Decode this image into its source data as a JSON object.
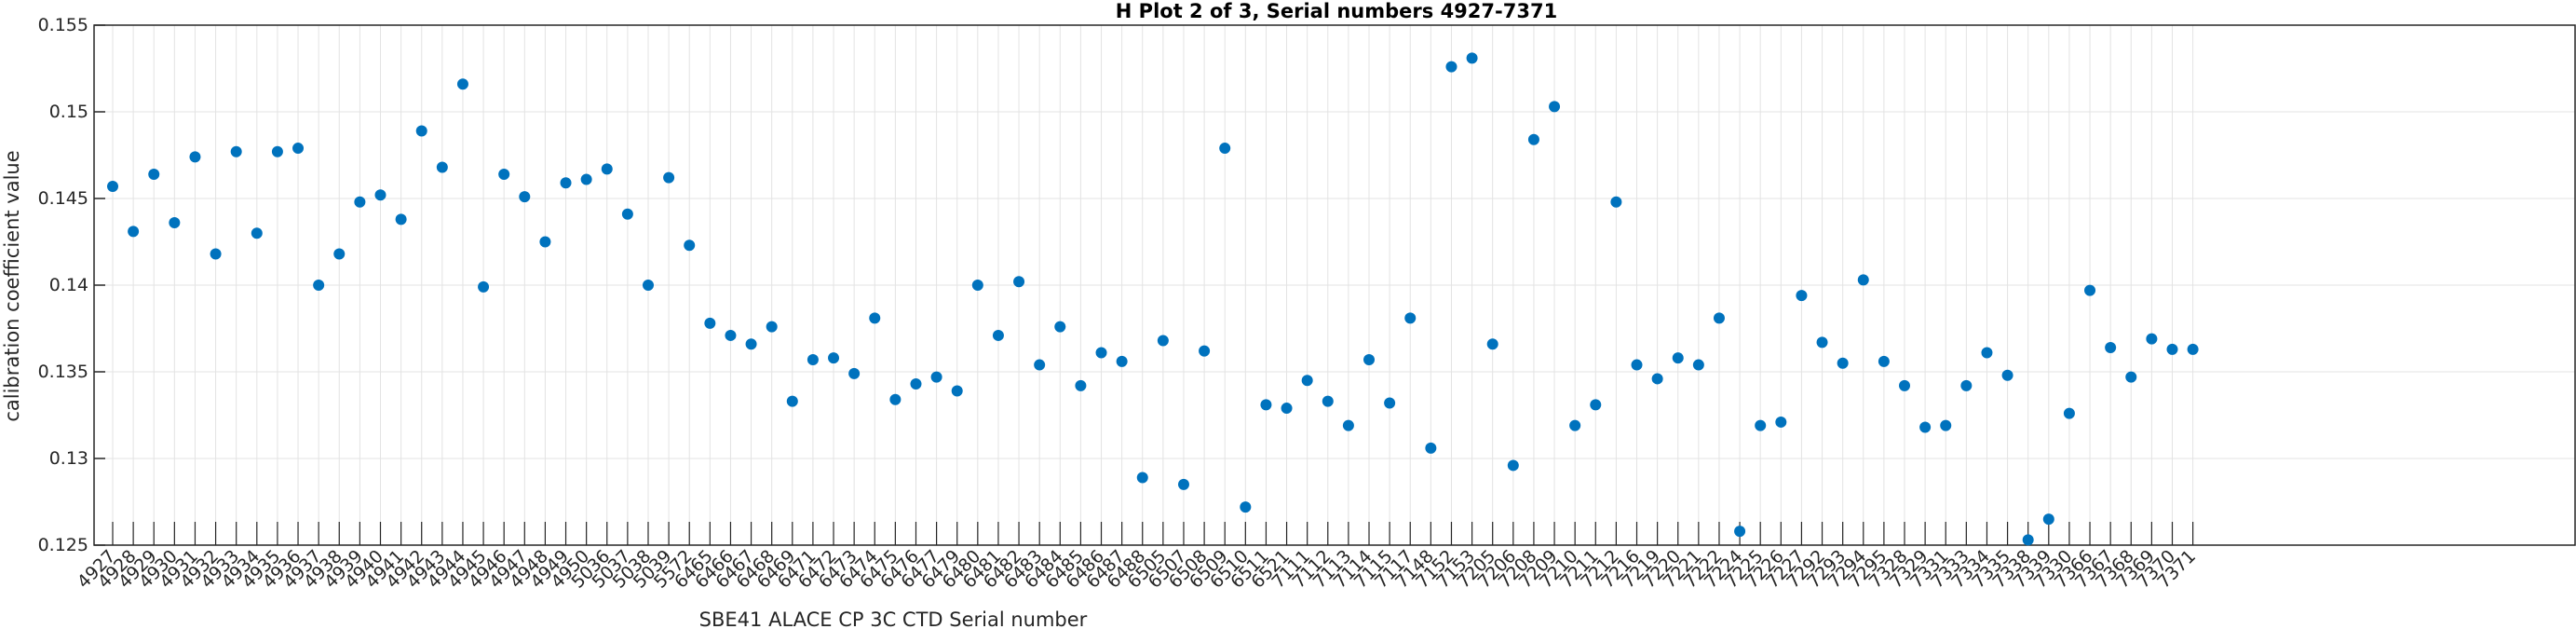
{
  "chart_data": {
    "type": "scatter",
    "title": "H Plot 2 of 3, Serial numbers 4927-7371",
    "xlabel": "SBE41 ALACE CP 3C CTD Serial number",
    "ylabel": "calibration coefficient value",
    "ylim": [
      0.125,
      0.155
    ],
    "yticks": [
      0.125,
      0.13,
      0.135,
      0.14,
      0.145,
      0.15,
      0.155
    ],
    "ytick_labels": [
      "0.125",
      "0.13",
      "0.135",
      "0.14",
      "0.145",
      "0.15",
      "0.155"
    ],
    "grid": true,
    "marker_color": "#0072BD",
    "categories": [
      "4927",
      "4928",
      "4929",
      "4930",
      "4931",
      "4932",
      "4933",
      "4934",
      "4935",
      "4936",
      "4937",
      "4938",
      "4939",
      "4940",
      "4941",
      "4942",
      "4943",
      "4944",
      "4945",
      "4946",
      "4947",
      "4948",
      "4949",
      "4950",
      "5036",
      "5037",
      "5038",
      "5039",
      "5572",
      "6465",
      "6466",
      "6467",
      "6468",
      "6469",
      "6471",
      "6472",
      "6473",
      "6474",
      "6475",
      "6476",
      "6477",
      "6479",
      "6480",
      "6481",
      "6482",
      "6483",
      "6484",
      "6485",
      "6486",
      "6487",
      "6488",
      "6505",
      "6507",
      "6508",
      "6509",
      "6510",
      "6511",
      "6521",
      "7111",
      "7112",
      "7113",
      "7114",
      "7115",
      "7117",
      "7148",
      "7152",
      "7153",
      "7205",
      "7206",
      "7208",
      "7209",
      "7210",
      "7211",
      "7212",
      "7216",
      "7219",
      "7220",
      "7221",
      "7222",
      "7224",
      "7225",
      "7226",
      "7227",
      "7292",
      "7293",
      "7294",
      "7295",
      "7328",
      "7329",
      "7331",
      "7333",
      "7334",
      "7335",
      "7338",
      "7339",
      "7330",
      "7366",
      "7367",
      "7368",
      "7369",
      "7370",
      "7371"
    ],
    "values": [
      0.1457,
      0.1431,
      0.1464,
      0.1436,
      0.1474,
      0.1418,
      0.1477,
      0.143,
      0.1477,
      0.1479,
      0.14,
      0.1418,
      0.1448,
      0.1452,
      0.1438,
      0.1489,
      0.1468,
      0.1516,
      0.1399,
      0.1464,
      0.1451,
      0.1425,
      0.1459,
      0.1461,
      0.1467,
      0.1441,
      0.14,
      0.1462,
      0.1423,
      0.1378,
      0.1371,
      0.1366,
      0.1376,
      0.1333,
      0.1357,
      0.1358,
      0.1349,
      0.1381,
      0.1334,
      0.1343,
      0.1347,
      0.1339,
      0.14,
      0.1371,
      0.1402,
      0.1354,
      0.1376,
      0.1342,
      0.1361,
      0.1356,
      0.1289,
      0.1368,
      0.1285,
      0.1362,
      0.1479,
      0.1272,
      0.1331,
      0.1329,
      0.1345,
      0.1333,
      0.1319,
      0.1357,
      0.1332,
      0.1381,
      0.1306,
      0.1526,
      0.1531,
      0.1366,
      0.1296,
      0.1484,
      0.1503,
      0.1319,
      0.1331,
      0.1448,
      0.1354,
      0.1346,
      0.1358,
      0.1354,
      0.1381,
      0.1258,
      0.1319,
      0.1321,
      0.1394,
      0.1367,
      0.1355,
      0.1403,
      0.1356,
      0.1342,
      0.1318,
      0.1319,
      0.1342,
      0.1361,
      0.1348,
      0.1253,
      0.1265,
      0.1326,
      0.1397,
      0.1364,
      0.1347,
      0.1369,
      0.1363,
      0.1363
    ]
  }
}
